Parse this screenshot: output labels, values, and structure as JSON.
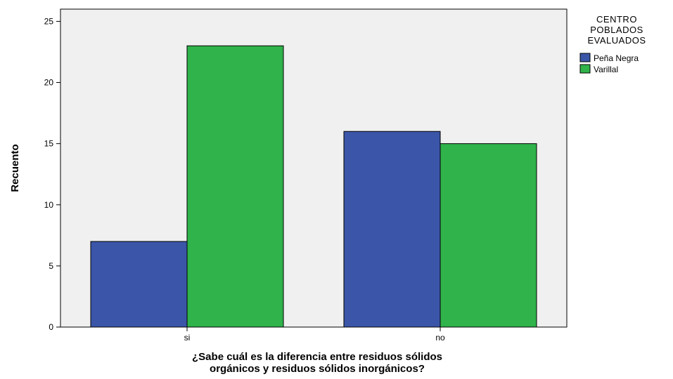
{
  "chart_data": {
    "type": "bar",
    "categories": [
      "si",
      "no"
    ],
    "series": [
      {
        "name": "Peña Negra",
        "values": [
          7,
          16
        ],
        "color": "#3b56a8"
      },
      {
        "name": "Varillal",
        "values": [
          23,
          15
        ],
        "color": "#2fb34a"
      }
    ],
    "xlabel_lines": [
      "¿Sabe cuál es la diferencia entre residuos sólidos",
      "orgánicos y residuos sólidos inorgánicos?"
    ],
    "ylabel": "Recuento",
    "ylim": [
      0,
      26
    ],
    "yticks": [
      0,
      5,
      10,
      15,
      20,
      25
    ],
    "legend": {
      "title_lines": [
        "CENTRO",
        "POBLADOS",
        "EVALUADOS"
      ],
      "placement": "right"
    },
    "plot_background": "#f0f0f0",
    "grid": false
  }
}
